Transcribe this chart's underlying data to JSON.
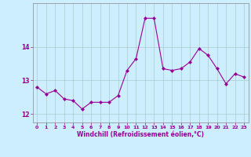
{
  "x": [
    0,
    1,
    2,
    3,
    4,
    5,
    6,
    7,
    8,
    9,
    10,
    11,
    12,
    13,
    14,
    15,
    16,
    17,
    18,
    19,
    20,
    21,
    22,
    23
  ],
  "y": [
    12.8,
    12.6,
    12.7,
    12.45,
    12.4,
    12.15,
    12.35,
    12.35,
    12.35,
    12.55,
    13.3,
    13.65,
    14.85,
    14.85,
    13.35,
    13.3,
    13.35,
    13.55,
    13.95,
    13.75,
    13.35,
    12.9,
    13.2,
    13.1
  ],
  "line_color": "#990099",
  "marker": "D",
  "marker_size": 2.0,
  "background_color": "#cceeff",
  "grid_color": "#aacccc",
  "xlabel": "Windchill (Refroidissement éolien,°C)",
  "xlabel_color": "#990099",
  "tick_color": "#990099",
  "label_color": "#990099",
  "ylim": [
    11.75,
    15.3
  ],
  "yticks": [
    12,
    13,
    14
  ],
  "xlim": [
    -0.5,
    23.5
  ],
  "xticks": [
    0,
    1,
    2,
    3,
    4,
    5,
    6,
    7,
    8,
    9,
    10,
    11,
    12,
    13,
    14,
    15,
    16,
    17,
    18,
    19,
    20,
    21,
    22,
    23
  ]
}
